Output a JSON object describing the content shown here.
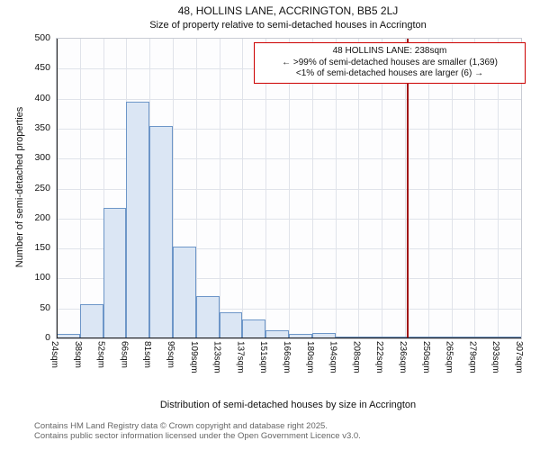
{
  "chart_data": {
    "type": "bar",
    "title": "48, HOLLINS LANE, ACCRINGTON, BB5 2LJ",
    "subtitle": "Size of property relative to semi-detached houses in Accrington",
    "xlabel": "Distribution of semi-detached houses by size in Accrington",
    "ylabel": "Number of semi-detached properties",
    "bin_edges_sqm": [
      24,
      38,
      52,
      66,
      81,
      95,
      109,
      123,
      137,
      151,
      166,
      180,
      194,
      208,
      222,
      236,
      250,
      265,
      279,
      293,
      307
    ],
    "tick_labels": [
      "24sqm",
      "38sqm",
      "52sqm",
      "66sqm",
      "81sqm",
      "95sqm",
      "109sqm",
      "123sqm",
      "137sqm",
      "151sqm",
      "166sqm",
      "180sqm",
      "194sqm",
      "208sqm",
      "222sqm",
      "236sqm",
      "250sqm",
      "265sqm",
      "279sqm",
      "293sqm",
      "307sqm"
    ],
    "values": [
      8,
      57,
      218,
      395,
      355,
      153,
      70,
      43,
      32,
      14,
      7,
      9,
      3,
      3,
      2,
      2,
      1,
      1,
      1,
      1
    ],
    "ylim": [
      0,
      500
    ],
    "yticks": [
      0,
      50,
      100,
      150,
      200,
      250,
      300,
      350,
      400,
      450,
      500
    ],
    "grid": true,
    "legend": "none",
    "marker": {
      "value_sqm": 238,
      "color": "#a01010"
    },
    "annotation": {
      "line1": "48 HOLLINS LANE: 238sqm",
      "line2": "← >99% of semi-detached houses are smaller (1,369)",
      "line3": "<1% of semi-detached houses are larger (6) →"
    },
    "colors": {
      "bar_fill": "#dbe6f4",
      "bar_border": "#6d96c8",
      "annotation_border": "#cc0000",
      "grid": "#e0e3ea"
    }
  },
  "footer": {
    "line1": "Contains HM Land Registry data © Crown copyright and database right 2025.",
    "line2": "Contains public sector information licensed under the Open Government Licence v3.0."
  }
}
